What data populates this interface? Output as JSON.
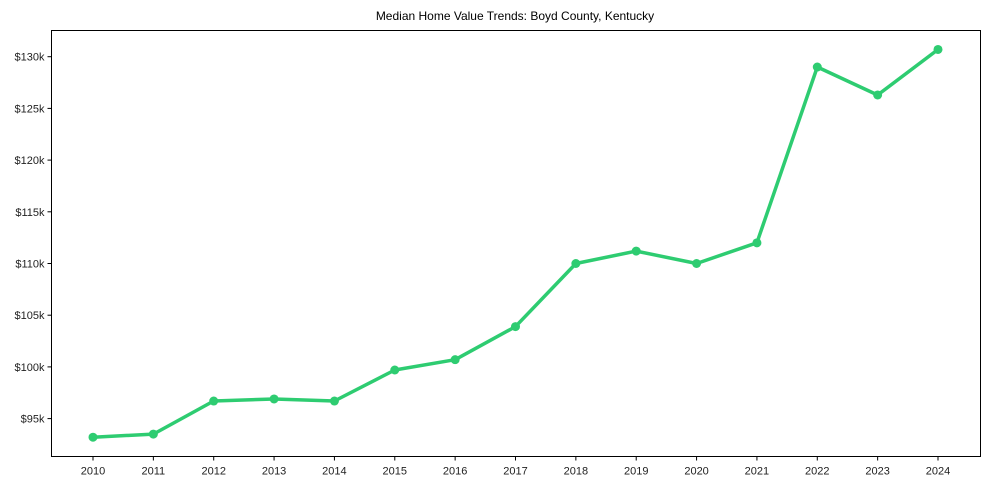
{
  "chart_data": {
    "type": "line",
    "title": "Median Home Value Trends: Boyd County, Kentucky",
    "xlabel": "",
    "ylabel": "",
    "x": [
      "2010",
      "2011",
      "2012",
      "2013",
      "2014",
      "2015",
      "2016",
      "2017",
      "2018",
      "2019",
      "2020",
      "2021",
      "2022",
      "2023",
      "2024"
    ],
    "series": [
      {
        "name": "Median Home Value",
        "color": "#2ecc71",
        "values": [
          93200,
          93500,
          96700,
          96900,
          96700,
          99700,
          100700,
          103900,
          110000,
          111200,
          110000,
          112000,
          129000,
          126300,
          130700
        ]
      }
    ],
    "yticks": [
      95000,
      100000,
      105000,
      110000,
      115000,
      120000,
      125000,
      130000
    ],
    "ytick_labels": [
      "$95k",
      "$100k",
      "$105k",
      "$110k",
      "$115k",
      "$120k",
      "$125k",
      "$130k"
    ],
    "ylim": [
      91300,
      132400
    ],
    "grid": false,
    "legend": null
  }
}
